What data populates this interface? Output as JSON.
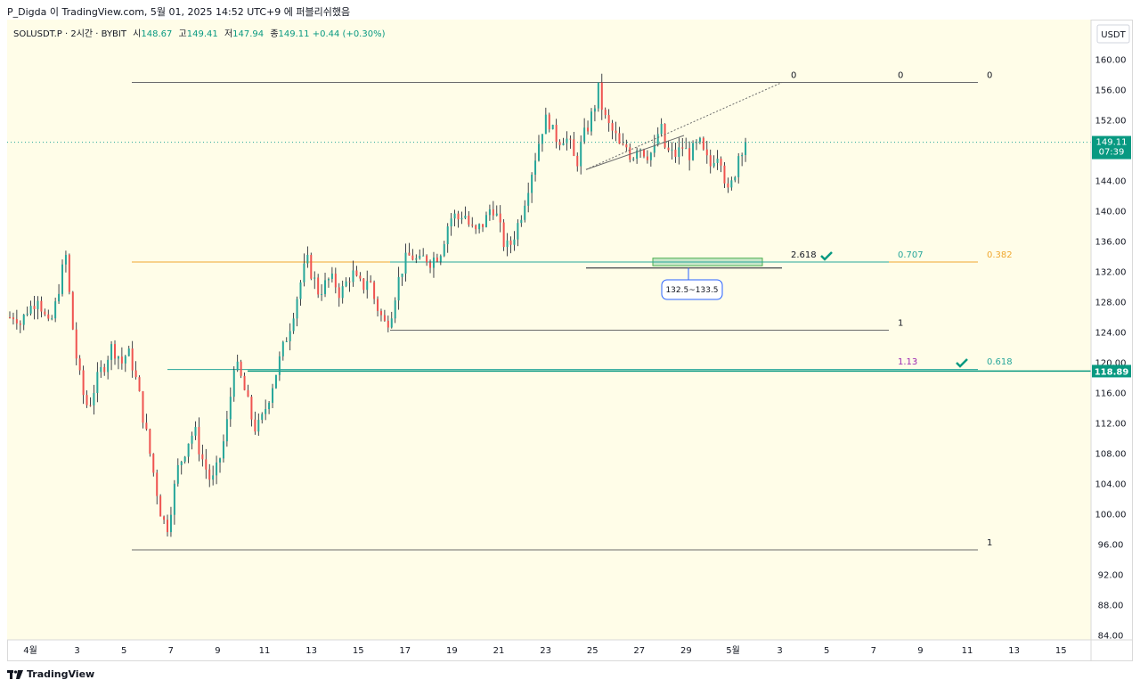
{
  "caption": "P_Digda 이 TradingView.com, 5월 01, 2025 14:52 UTC+9 에 퍼블리쉬했음",
  "legend": {
    "symbol": "SOLUSDT.P · 2시간 · BYBIT",
    "open_label": "시",
    "open": "148.67",
    "high_label": "고",
    "high": "149.41",
    "low_label": "저",
    "low": "147.94",
    "close_label": "종",
    "close": "149.11",
    "change": "+0.44 (+0.30%)"
  },
  "footer": {
    "brand": "TradingView"
  },
  "colors": {
    "up": "#26a69a",
    "down": "#ef5350",
    "background": "#fffde8",
    "accent": "#089981",
    "orange": "#f0a830"
  },
  "chart_data": {
    "type": "candlestick",
    "symbol": "SOLUSDT.P",
    "timeframe": "2시간",
    "exchange": "BYBIT",
    "currency": "USDT",
    "ylim": [
      83,
      163
    ],
    "y_ticks": [
      "160.00",
      "156.00",
      "152.00",
      "148.00",
      "144.00",
      "140.00",
      "136.00",
      "132.00",
      "128.00",
      "124.00",
      "120.00",
      "116.00",
      "112.00",
      "108.00",
      "104.00",
      "100.00",
      "96.00",
      "92.00",
      "88.00",
      "84.00"
    ],
    "x_ticks": [
      "4월",
      "3",
      "5",
      "7",
      "9",
      "11",
      "13",
      "15",
      "17",
      "19",
      "21",
      "23",
      "25",
      "27",
      "29",
      "5월",
      "3",
      "5",
      "7",
      "9",
      "11",
      "13",
      "15"
    ],
    "last_price": "149.11",
    "countdown": "07:39",
    "level_price": "118.89",
    "price_path": [
      [
        0,
        126
      ],
      [
        1,
        126.5
      ],
      [
        2,
        125
      ],
      [
        3,
        127
      ],
      [
        4,
        127.5
      ],
      [
        5,
        129
      ],
      [
        6,
        126.5
      ],
      [
        7,
        124.5
      ],
      [
        8,
        127
      ],
      [
        9,
        131
      ],
      [
        10,
        134
      ],
      [
        11,
        126
      ],
      [
        12,
        120
      ],
      [
        13,
        116
      ],
      [
        14,
        114
      ],
      [
        15,
        116.5
      ],
      [
        16,
        118.5
      ],
      [
        17,
        120
      ],
      [
        18,
        122
      ],
      [
        19,
        121.5
      ],
      [
        20,
        120
      ],
      [
        21,
        121.5
      ],
      [
        22,
        119.5
      ],
      [
        23,
        116
      ],
      [
        24,
        112
      ],
      [
        25,
        108
      ],
      [
        26,
        104
      ],
      [
        27,
        100
      ],
      [
        28,
        98
      ],
      [
        29,
        102
      ],
      [
        30,
        106
      ],
      [
        31,
        108
      ],
      [
        32,
        110
      ],
      [
        33,
        111
      ],
      [
        34,
        108
      ],
      [
        35,
        106
      ],
      [
        36,
        104
      ],
      [
        37,
        106
      ],
      [
        38,
        109
      ],
      [
        39,
        113
      ],
      [
        40,
        120
      ],
      [
        41,
        118.5
      ],
      [
        42,
        116
      ],
      [
        43,
        113
      ],
      [
        44,
        111
      ],
      [
        45,
        112.5
      ],
      [
        46,
        115
      ],
      [
        47,
        117.5
      ],
      [
        48,
        120
      ],
      [
        49,
        122.5
      ],
      [
        50,
        125
      ],
      [
        51,
        128
      ],
      [
        52,
        131
      ],
      [
        53,
        133.5
      ],
      [
        54,
        131.5
      ],
      [
        55,
        129.5
      ],
      [
        56,
        130
      ],
      [
        57,
        131
      ],
      [
        58,
        130.5
      ],
      [
        59,
        129
      ],
      [
        60,
        130.5
      ],
      [
        61,
        132
      ],
      [
        62,
        130.5
      ],
      [
        63,
        130
      ],
      [
        64,
        131.5
      ],
      [
        65,
        128.5
      ],
      [
        66,
        126.5
      ],
      [
        67,
        125
      ],
      [
        68,
        126.5
      ],
      [
        69,
        130
      ],
      [
        70,
        132.5
      ],
      [
        71,
        134
      ],
      [
        72,
        134
      ],
      [
        73,
        133
      ],
      [
        74,
        134
      ],
      [
        75,
        133.5
      ],
      [
        76,
        134
      ],
      [
        77,
        135
      ],
      [
        78,
        138
      ],
      [
        79,
        139.5
      ],
      [
        80,
        139
      ],
      [
        81,
        140
      ],
      [
        82,
        138
      ],
      [
        83,
        137
      ],
      [
        84,
        138
      ],
      [
        85,
        139
      ],
      [
        86,
        141
      ],
      [
        87,
        139
      ],
      [
        88,
        136
      ],
      [
        89,
        135
      ],
      [
        90,
        137
      ],
      [
        91,
        139
      ],
      [
        92,
        142
      ],
      [
        93,
        145
      ],
      [
        94,
        148
      ],
      [
        95,
        151
      ],
      [
        96,
        152.5
      ],
      [
        97,
        150
      ],
      [
        98,
        149.5
      ],
      [
        99,
        150
      ],
      [
        100,
        148.5
      ],
      [
        101,
        146
      ],
      [
        102,
        149
      ],
      [
        103,
        151
      ],
      [
        104,
        153
      ],
      [
        105,
        156
      ],
      [
        106,
        152.5
      ],
      [
        107,
        151
      ],
      [
        108,
        150
      ],
      [
        109,
        148
      ],
      [
        110,
        148.5
      ],
      [
        111,
        147
      ],
      [
        112,
        149
      ],
      [
        113,
        148
      ],
      [
        114,
        147.5
      ],
      [
        115,
        148
      ],
      [
        116,
        151.5
      ],
      [
        117,
        148
      ],
      [
        118,
        147.5
      ],
      [
        119,
        147.5
      ],
      [
        120,
        148.5
      ],
      [
        121,
        147.5
      ],
      [
        122,
        148
      ],
      [
        123,
        149
      ],
      [
        124,
        147
      ],
      [
        125,
        146
      ],
      [
        126,
        148
      ],
      [
        127,
        147
      ],
      [
        128,
        142
      ],
      [
        129,
        144
      ],
      [
        130,
        147.5
      ],
      [
        131,
        149.11
      ]
    ],
    "annotations": {
      "fib_labels": [
        {
          "text": "0",
          "price": 157,
          "color": "#131722"
        },
        {
          "text": "0",
          "price": 157,
          "color": "#131722"
        },
        {
          "text": "0",
          "price": 157,
          "color": "#131722"
        },
        {
          "text": "2.618",
          "price": 133.3,
          "color": "#131722"
        },
        {
          "text": "0.707",
          "price": 133.3,
          "color": "#26a69a"
        },
        {
          "text": "0.382",
          "price": 133.3,
          "color": "#f0a830"
        },
        {
          "text": "1",
          "price": 124.3,
          "color": "#131722"
        },
        {
          "text": "1.13",
          "price": 119.2,
          "color": "#9c27b0"
        },
        {
          "text": "0.618",
          "price": 119.2,
          "color": "#26a69a"
        },
        {
          "text": "1",
          "price": 95.3,
          "color": "#131722"
        }
      ],
      "zone_label": "132.5~133.5"
    }
  }
}
